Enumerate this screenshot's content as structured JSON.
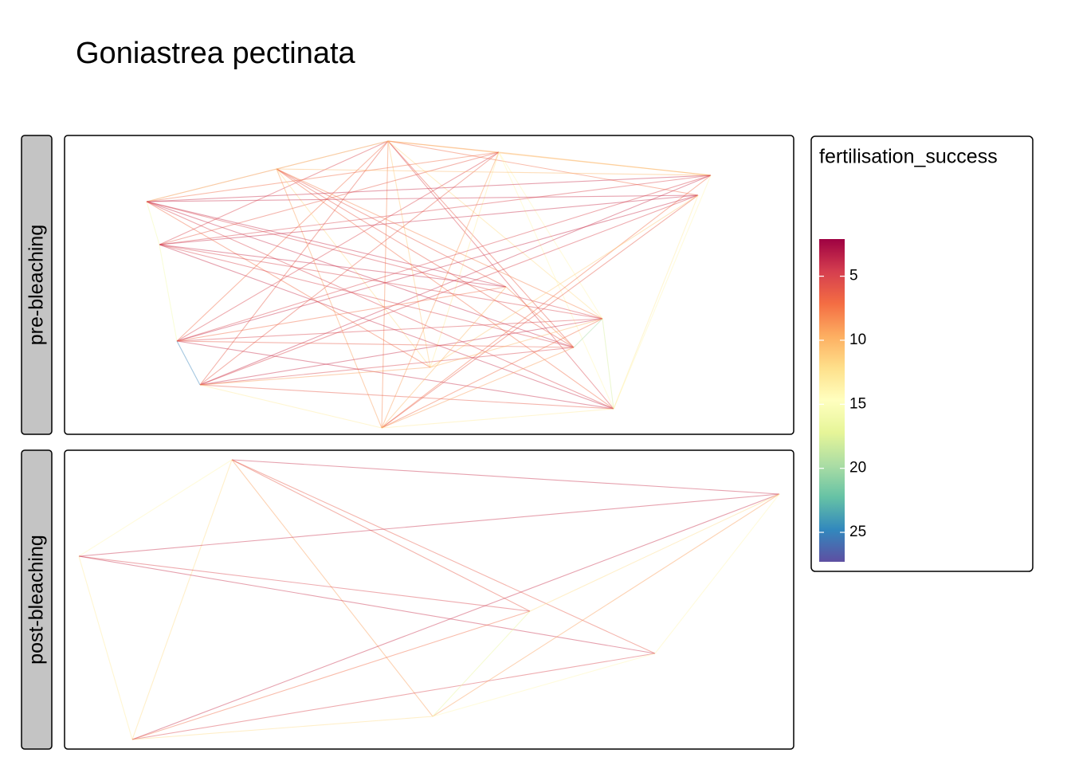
{
  "chart_data": {
    "type": "network",
    "title": "Goniastrea pectinata",
    "panels": [
      {
        "strip": "pre-bleaching",
        "values": [
          6,
          5,
          7,
          6,
          5,
          8,
          6,
          10,
          7,
          12,
          13,
          9,
          11,
          7,
          6,
          5,
          6,
          9,
          14,
          10,
          14,
          13,
          13,
          7,
          6,
          6,
          9,
          10,
          8,
          12,
          4,
          5,
          5,
          4,
          7,
          14,
          4,
          4,
          4,
          5,
          6,
          11,
          13,
          16,
          4,
          5,
          4,
          5,
          7,
          4,
          5,
          5,
          4,
          16,
          5,
          6,
          4,
          25,
          7,
          4,
          5,
          6,
          13,
          9,
          7,
          9,
          13,
          10,
          20,
          18,
          8,
          10
        ]
      },
      {
        "strip": "post-bleaching",
        "values": [
          4,
          14,
          6,
          6,
          9,
          12,
          4,
          5,
          4,
          13,
          4,
          7,
          5,
          12,
          9,
          17,
          14,
          12,
          14
        ]
      }
    ],
    "colorbar": {
      "title": "fertilisation_success",
      "lim": [
        2.1,
        27.3
      ],
      "ticks": [
        5,
        10,
        15,
        20,
        25
      ],
      "palette": [
        "#9e0142",
        "#d53e4f",
        "#f46d43",
        "#fdae61",
        "#fee08b",
        "#ffffbf",
        "#e6f598",
        "#abdda4",
        "#66c2a5",
        "#3288bd",
        "#5e4fa2"
      ]
    }
  }
}
